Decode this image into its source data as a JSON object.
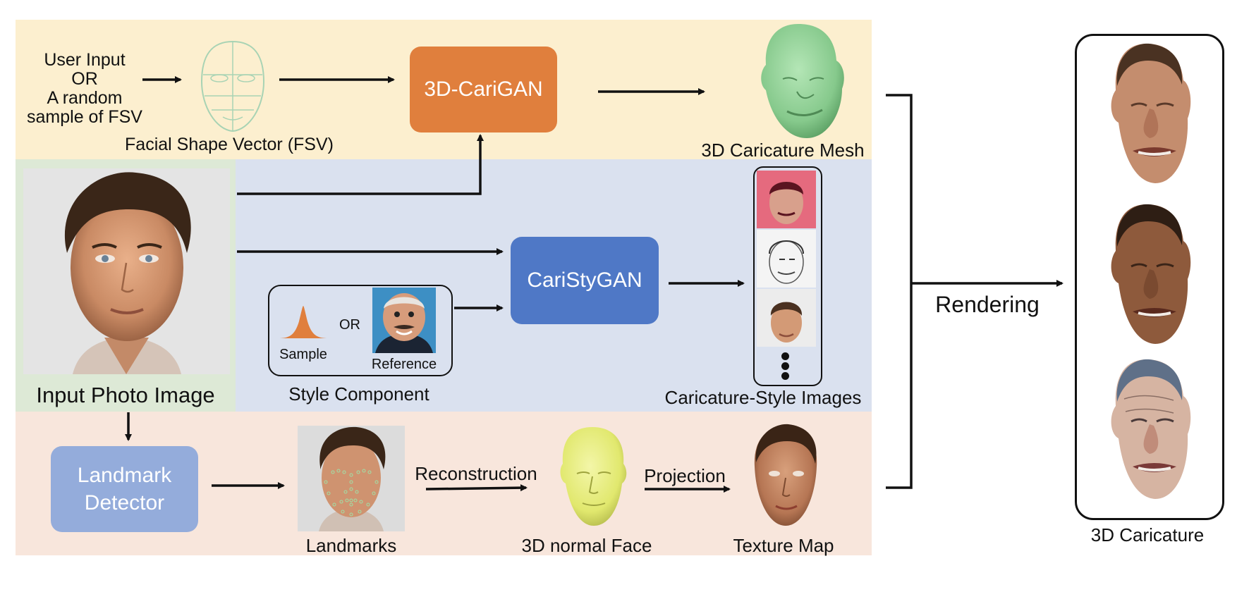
{
  "top_band": {
    "user_input_lines": [
      "User Input",
      "OR",
      "A random",
      "sample of FSV"
    ],
    "fsv_label": "Facial Shape Vector (FSV)",
    "carigan_label": "3D-CariGAN",
    "mesh_label": "3D Caricature Mesh"
  },
  "middle_band": {
    "input_label": "Input Photo Image",
    "caristygan_label": "CariStyGAN",
    "style_component": {
      "sample_label": "Sample",
      "or_label": "OR",
      "reference_label": "Reference",
      "title": "Style Component"
    },
    "caricature_images_label": "Caricature-Style Images"
  },
  "bottom_band": {
    "landmark_detector_lines": [
      "Landmark",
      "Detector"
    ],
    "landmarks_label": "Landmarks",
    "reconstruction_label": "Reconstruction",
    "normal_face_label": "3D normal Face",
    "projection_label": "Projection",
    "texture_map_label": "Texture Map"
  },
  "output": {
    "rendering_label": "Rendering",
    "result_label": "3D Caricature"
  },
  "colors": {
    "top_band": "#fcefcf",
    "middle_band": "#dae1ef",
    "bottom_band": "#f8e6dc",
    "input_panel": "#dde9d6",
    "carigan_box": "#e07f3d",
    "caristygan_box": "#4f78c6",
    "landmark_box": "#94acdb",
    "mesh": "#8fd096",
    "normal_face": "#e6ec7c"
  }
}
